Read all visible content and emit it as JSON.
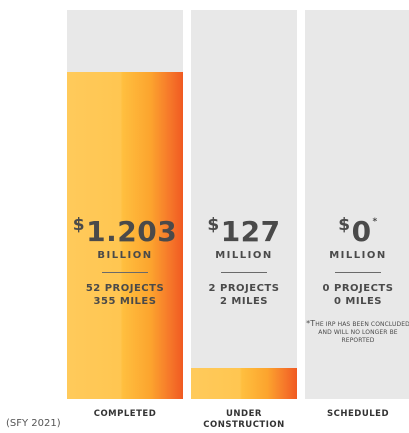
{
  "chart_data": {
    "type": "bar",
    "categories": [
      "COMPLETED",
      "UNDER\nCONSTRUCTION",
      "SCHEDULED"
    ],
    "values": [
      1203,
      127,
      0
    ],
    "value_unit": "$ million",
    "fill_fraction": [
      0.84,
      0.08,
      0.0
    ],
    "colors": {
      "empty": "#e8e8e8",
      "fill_light": "#ffc651",
      "fill_dark": "#f05a22",
      "text": "#4a4a4a"
    },
    "bars": [
      {
        "currency": "$",
        "amount": "1.203",
        "asterisk": "",
        "unit": "BILLION",
        "projects": "52 PROJECTS",
        "miles": "355 MILES",
        "note_lead": "",
        "note_rest": ""
      },
      {
        "currency": "$",
        "amount": "127",
        "asterisk": "",
        "unit": "MILLION",
        "projects": "2 PROJECTS",
        "miles": "2 MILES",
        "note_lead": "",
        "note_rest": ""
      },
      {
        "currency": "$",
        "amount": "0",
        "asterisk": "*",
        "unit": "MILLION",
        "projects": "0 PROJECTS",
        "miles": "0 MILES",
        "note_lead": "*T",
        "note_rest": "he IRP has been concluded and will no longer be reported"
      }
    ],
    "period_label": "(SFY 2021)"
  }
}
